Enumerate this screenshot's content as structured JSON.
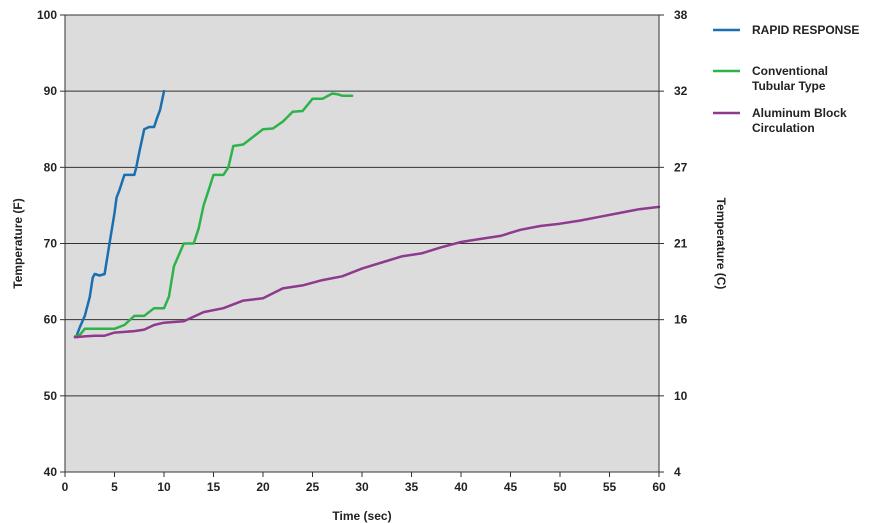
{
  "chart_data": {
    "type": "line",
    "xlabel": "Time (sec)",
    "ylabel": "Temperature (F)",
    "y2label": "Temperature (C)",
    "xlim": [
      0,
      60
    ],
    "ylim": [
      40,
      100
    ],
    "xticks": [
      0,
      5,
      10,
      15,
      20,
      25,
      30,
      35,
      40,
      45,
      50,
      55,
      60
    ],
    "yticks": [
      40,
      50,
      60,
      70,
      80,
      90,
      100
    ],
    "y2ticks": [
      {
        "value": 4,
        "at_f": 40
      },
      {
        "value": 10,
        "at_f": 50
      },
      {
        "value": 16,
        "at_f": 60
      },
      {
        "value": 21,
        "at_f": 70
      },
      {
        "value": 27,
        "at_f": 80
      },
      {
        "value": 32,
        "at_f": 90
      },
      {
        "value": 38,
        "at_f": 100
      }
    ],
    "grid": "horizontal",
    "legend_position": "right",
    "background_color": "#dcdcdc",
    "series": [
      {
        "name": "RAPID RESPONSE",
        "color": "#1a6fb0",
        "x": [
          1.2,
          1.5,
          2.0,
          2.5,
          2.8,
          3.0,
          3.5,
          4.0,
          4.5,
          5.0,
          5.2,
          5.5,
          6.0,
          6.5,
          7.0,
          7.2,
          7.5,
          8.0,
          8.5,
          9.0,
          9.3,
          9.6,
          10.0
        ],
        "y": [
          58,
          59,
          60.5,
          63,
          65.5,
          66,
          65.8,
          66,
          70,
          74,
          76,
          77,
          79,
          79,
          79,
          80,
          82,
          85,
          85.3,
          85.3,
          86.5,
          87.5,
          90
        ]
      },
      {
        "name": "Conventional Tubular Type",
        "color": "#2db34a",
        "x": [
          1.0,
          1.5,
          2.0,
          3.0,
          4.0,
          5.0,
          6.0,
          7.0,
          8.0,
          9.0,
          10.0,
          10.5,
          11.0,
          12.0,
          13.0,
          13.5,
          14.0,
          14.5,
          15.0,
          16.0,
          16.5,
          17.0,
          18.0,
          19.0,
          20.0,
          21.0,
          22.0,
          23.0,
          24.0,
          25.0,
          26.0,
          27.0,
          27.5,
          28.0,
          29.0
        ],
        "y": [
          57.8,
          58,
          58.8,
          58.8,
          58.8,
          58.8,
          59.3,
          60.5,
          60.5,
          61.5,
          61.5,
          63,
          67,
          70,
          70,
          72,
          75,
          77,
          79,
          79,
          80,
          82.8,
          83,
          84,
          85,
          85.1,
          86,
          87.3,
          87.4,
          89,
          89,
          89.7,
          89.6,
          89.4,
          89.4
        ]
      },
      {
        "name": "Aluminum Block Circulation",
        "color": "#8e3a8e",
        "x": [
          1,
          2,
          3,
          4,
          5,
          6,
          7,
          8,
          9,
          10,
          12,
          14,
          16,
          18,
          20,
          22,
          24,
          26,
          28,
          30,
          32,
          34,
          36,
          38,
          40,
          42,
          44,
          46,
          48,
          50,
          52,
          54,
          56,
          58,
          60
        ],
        "y": [
          57.7,
          57.8,
          57.9,
          57.9,
          58.3,
          58.4,
          58.5,
          58.7,
          59.3,
          59.6,
          59.8,
          61.0,
          61.5,
          62.5,
          62.8,
          64.1,
          64.5,
          65.2,
          65.7,
          66.7,
          67.5,
          68.3,
          68.7,
          69.5,
          70.2,
          70.6,
          71.0,
          71.8,
          72.3,
          72.6,
          73.0,
          73.5,
          74.0,
          74.5,
          74.8
        ]
      }
    ]
  }
}
